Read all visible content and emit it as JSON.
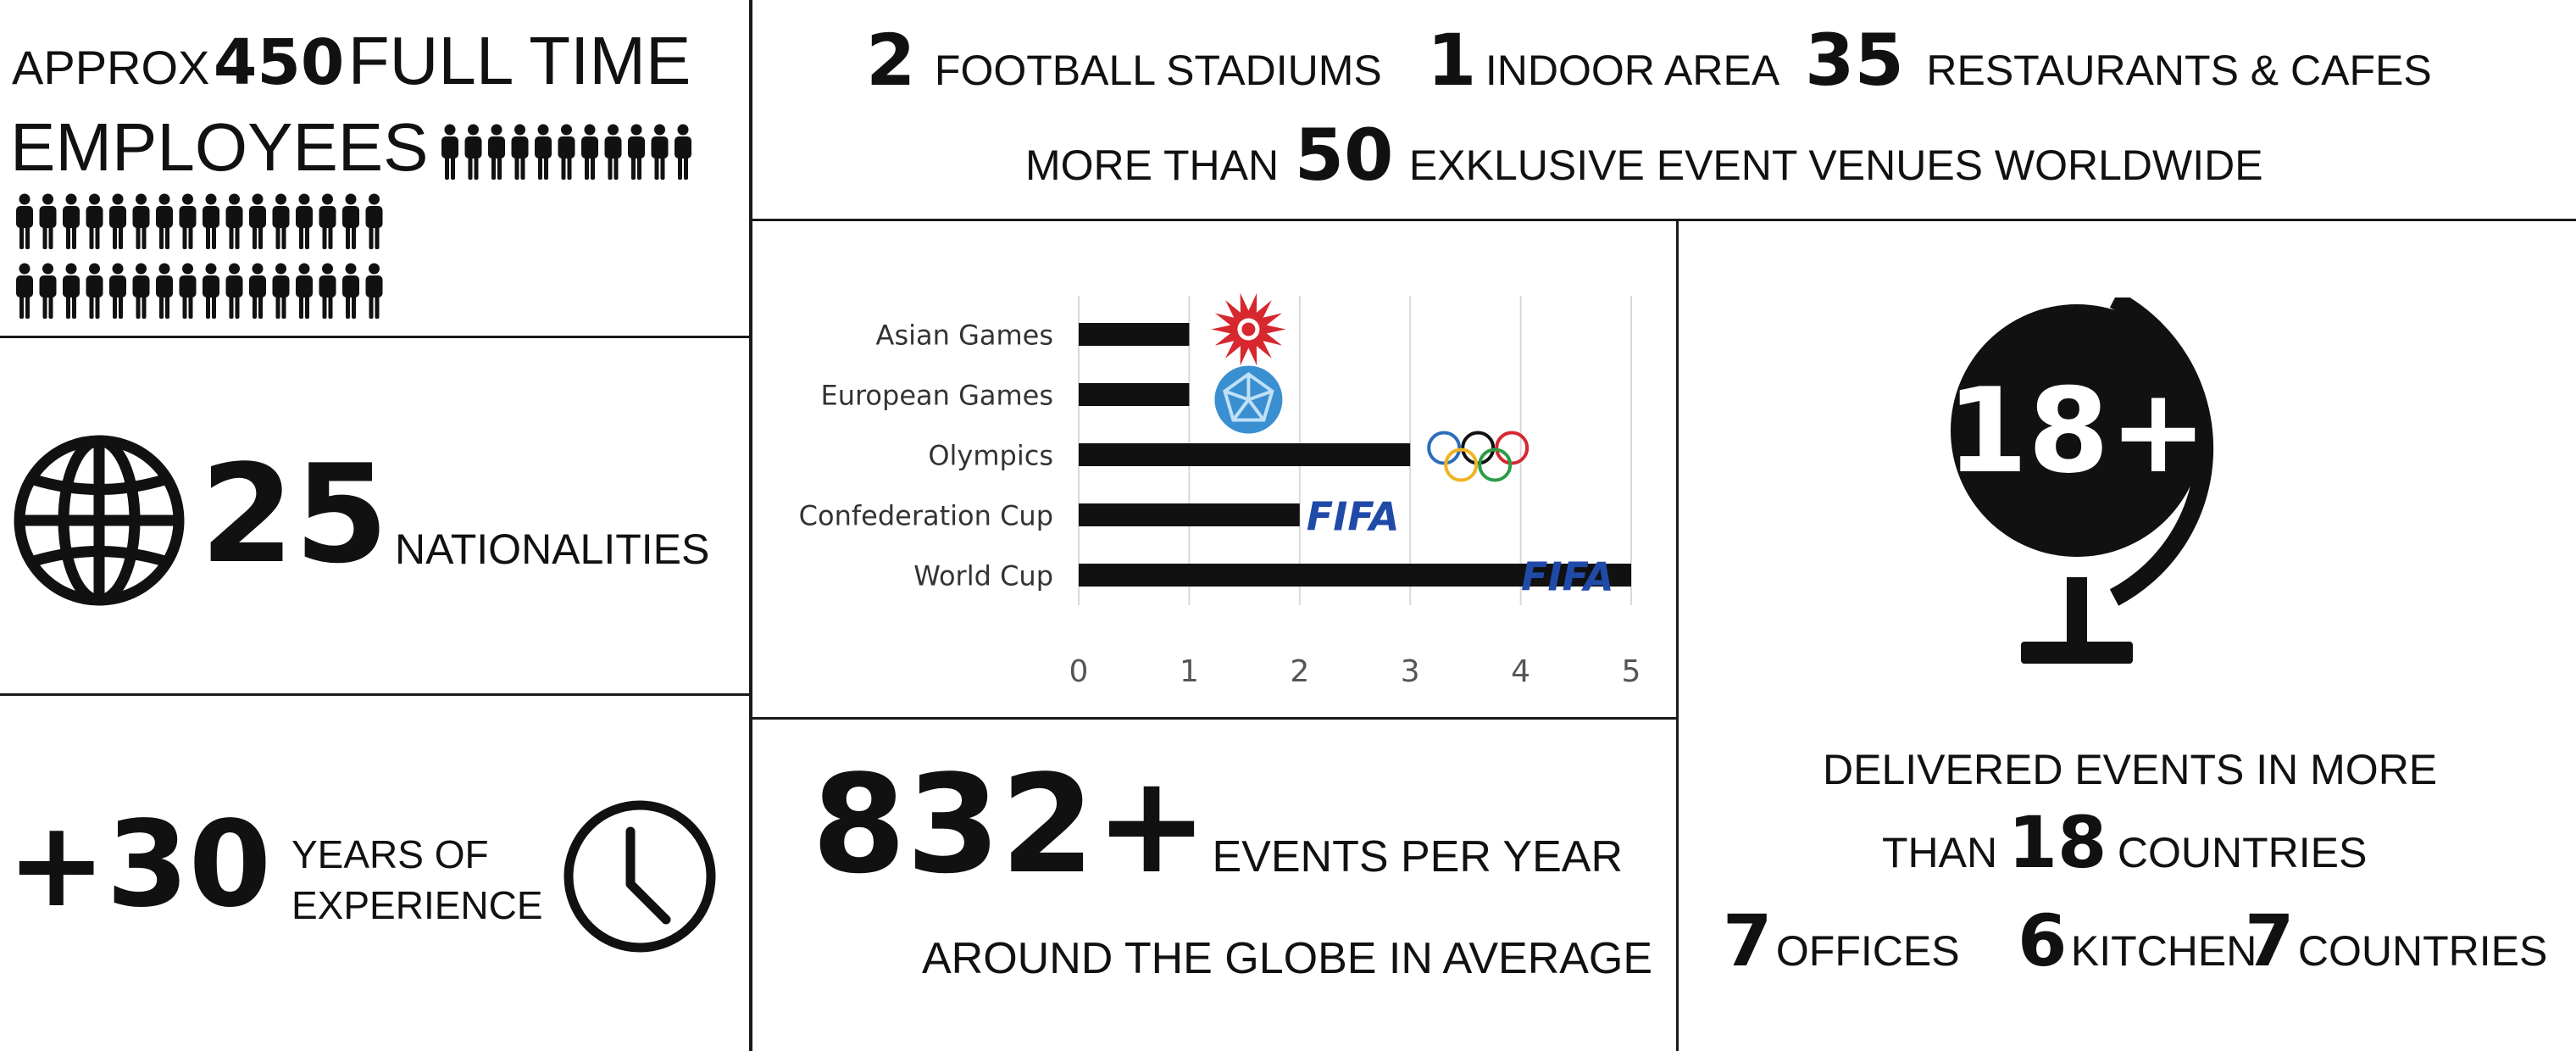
{
  "employees": {
    "approx_label": "APPROX",
    "number": "450",
    "line1_rest": "FULL TIME",
    "line2": "EMPLOYEES",
    "icon_rows": [
      11,
      16,
      16
    ]
  },
  "nationalities": {
    "number": "25",
    "label": "NATIONALITIES"
  },
  "experience": {
    "number": "+30",
    "label_line1": "YEARS OF",
    "label_line2": "EXPERIENCE"
  },
  "venues": {
    "items": [
      {
        "number": "2",
        "label": "FOOTBALL STADIUMS"
      },
      {
        "number": "1",
        "label": "INDOOR AREA"
      },
      {
        "number": "35",
        "label": "RESTAURANTS & CAFES"
      }
    ],
    "line2_prefix": "MORE THAN",
    "line2_number": "50",
    "line2_suffix": "EXKLUSIVE EVENT VENUES WORLDWIDE"
  },
  "chart_data": {
    "type": "bar",
    "orientation": "horizontal",
    "categories": [
      "Asian Games",
      "European Games",
      "Olympics",
      "Confederation Cup",
      "World Cup"
    ],
    "values": [
      1,
      1,
      3,
      2,
      5
    ],
    "xlim": [
      0,
      5
    ],
    "xticks": [
      "0",
      "1",
      "2",
      "3",
      "4",
      "5"
    ],
    "grid": true,
    "bar_color": "#111111",
    "logos": [
      "asian-games-logo",
      "european-games-logo",
      "olympic-rings-logo",
      "fifa-logo",
      "fifa-logo"
    ],
    "logo_text": {
      "fifa": "FIFA"
    }
  },
  "events": {
    "number": "832+",
    "label": "EVENTS PER YEAR",
    "line2": "AROUND THE GLOBE IN AVERAGE"
  },
  "countries": {
    "globe_number": "18+",
    "line1": "DELIVERED EVENTS IN MORE",
    "line2_prefix": "THAN",
    "line2_number": "18",
    "line2_suffix": "COUNTRIES",
    "stats": [
      {
        "number": "7",
        "label": "OFFICES"
      },
      {
        "number": "6",
        "label": "KITCHEN"
      },
      {
        "number": "7",
        "label": "COUNTRIES"
      }
    ]
  },
  "colors": {
    "fifa_blue": "#1f4aa8",
    "asian_red": "#d7282f",
    "euro_blue": "#3a8fd0"
  }
}
